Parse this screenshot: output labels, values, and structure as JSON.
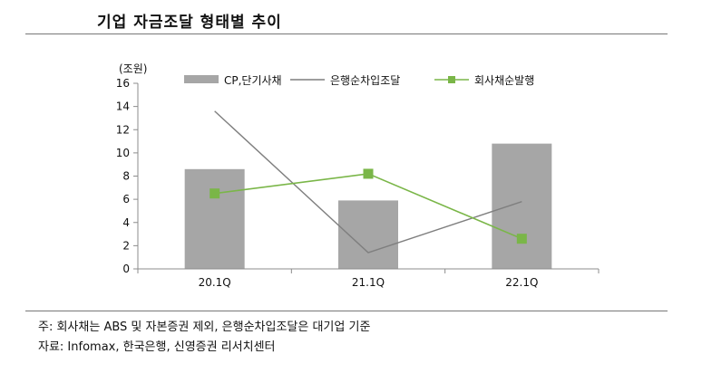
{
  "header": {
    "title": "기업 자금조달 형태별 추이"
  },
  "chart_data": {
    "type": "bar",
    "unit_label": "(조원)",
    "categories": [
      "20.1Q",
      "21.1Q",
      "22.1Q"
    ],
    "ylim": [
      0,
      16
    ],
    "yticks": [
      0,
      2,
      4,
      6,
      8,
      10,
      12,
      14,
      16
    ],
    "grid": false,
    "legend_position": "top",
    "series": [
      {
        "name": "CP,단기사채",
        "kind": "bar",
        "color": "#a6a6a6",
        "values": [
          8.6,
          5.9,
          10.8
        ]
      },
      {
        "name": "은행순차입조달",
        "kind": "line",
        "color": "#7f7f7f",
        "values": [
          13.6,
          1.4,
          5.8
        ]
      },
      {
        "name": "회사채순발행",
        "kind": "line-marker",
        "color": "#7ab648",
        "values": [
          6.5,
          8.2,
          2.6
        ]
      }
    ]
  },
  "footnotes": {
    "note": "주: 회사채는 ABS 및 자본증권 제외, 은행순차입조달은 대기업 기준",
    "source": "자료: Infomax, 한국은행, 신영증권 리서치센터"
  }
}
